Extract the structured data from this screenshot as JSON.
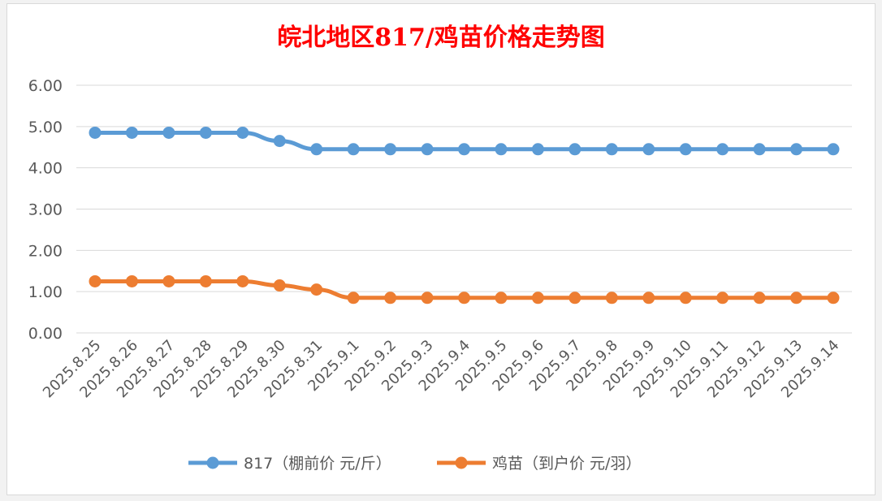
{
  "chart_data": {
    "type": "line",
    "title": "皖北地区817/鸡苗价格走势图",
    "xlabel": "",
    "ylabel": "",
    "categories": [
      "2025.8.25",
      "2025.8.26",
      "2025.8.27",
      "2025.8.28",
      "2025.8.29",
      "2025.8.30",
      "2025.8.31",
      "2025.9.1",
      "2025.9.2",
      "2025.9.3",
      "2025.9.4",
      "2025.9.5",
      "2025.9.6",
      "2025.9.7",
      "2025.9.8",
      "2025.9.9",
      "2025.9.10",
      "2025.9.11",
      "2025.9.12",
      "2025.9.13",
      "2025.9.14"
    ],
    "ylim": [
      0,
      6
    ],
    "yticks": [
      "0.00",
      "1.00",
      "2.00",
      "3.00",
      "4.00",
      "5.00",
      "6.00"
    ],
    "grid": true,
    "legend_position": "bottom",
    "series": [
      {
        "name": "817（棚前价 元/斤）",
        "color": "#5b9bd5",
        "values": [
          4.85,
          4.85,
          4.85,
          4.85,
          4.85,
          4.65,
          4.45,
          4.45,
          4.45,
          4.45,
          4.45,
          4.45,
          4.45,
          4.45,
          4.45,
          4.45,
          4.45,
          4.45,
          4.45,
          4.45,
          4.45
        ]
      },
      {
        "name": "鸡苗（到户价 元/羽）",
        "color": "#ed7d31",
        "values": [
          1.25,
          1.25,
          1.25,
          1.25,
          1.25,
          1.15,
          1.05,
          0.85,
          0.85,
          0.85,
          0.85,
          0.85,
          0.85,
          0.85,
          0.85,
          0.85,
          0.85,
          0.85,
          0.85,
          0.85,
          0.85
        ]
      }
    ]
  }
}
